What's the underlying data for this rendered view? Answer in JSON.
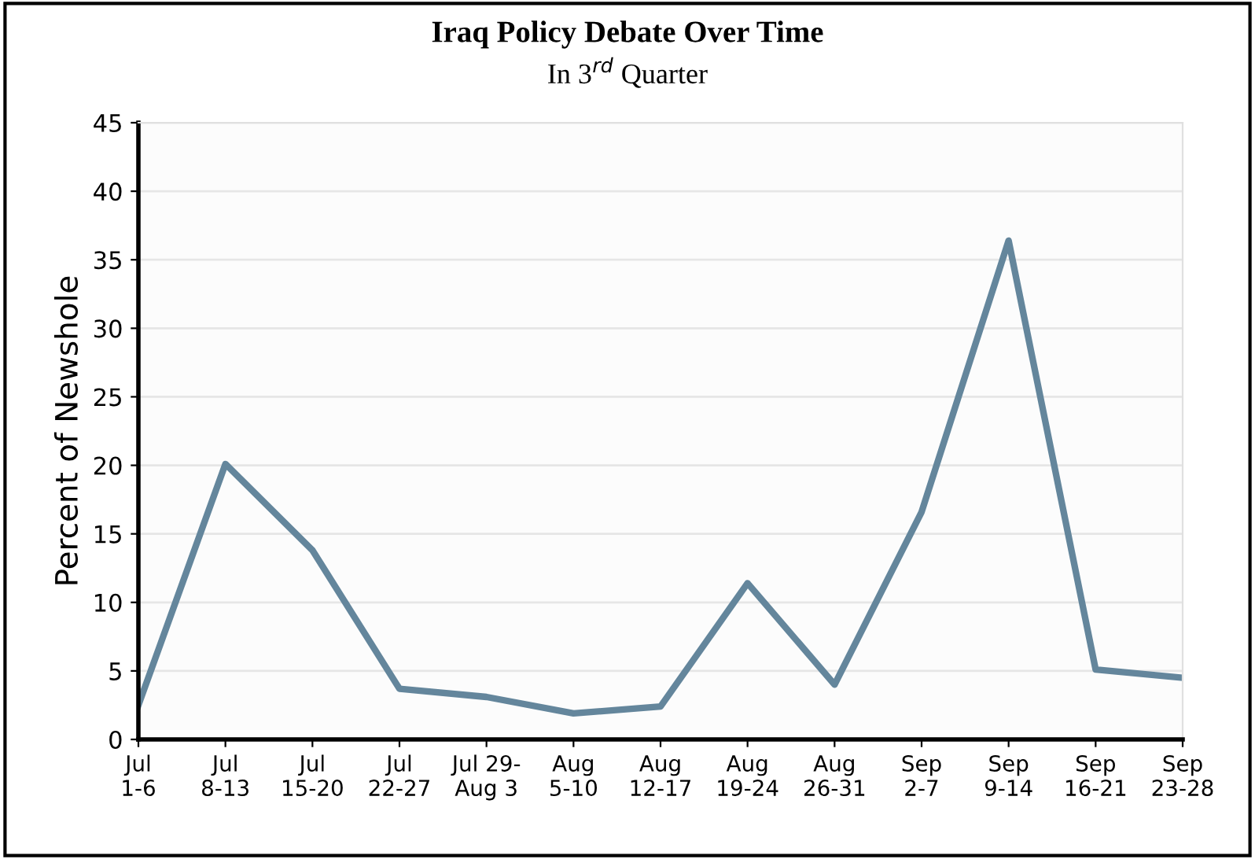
{
  "chart_data": {
    "type": "line",
    "title": "Iraq Policy Debate Over Time",
    "subtitle": "In 3$^{rd}$ Quarter",
    "ylabel": "Percent of Newshole",
    "categories": [
      "Jul\n1-6",
      "Jul\n8-13",
      "Jul\n15-20",
      "Jul\n22-27",
      "Jul 29-\nAug 3",
      "Aug\n5-10",
      "Aug\n12-17",
      "Aug\n19-24",
      "Aug\n26-31",
      "Sep\n2-7",
      "Sep\n9-14",
      "Sep\n16-21",
      "Sep\n23-28"
    ],
    "series": [
      {
        "color": "#64869c",
        "values": [
          2.5,
          20.1,
          13.8,
          3.7,
          3.1,
          1.9,
          2.4,
          11.4,
          4.0,
          16.6,
          36.4,
          5.1,
          4.5
        ]
      }
    ],
    "ylim": [
      0,
      45
    ],
    "yticks": [
      0,
      5,
      10,
      15,
      20,
      25,
      30,
      35,
      40,
      45
    ],
    "grid": "y",
    "line_style": "solid",
    "marker": "none"
  }
}
